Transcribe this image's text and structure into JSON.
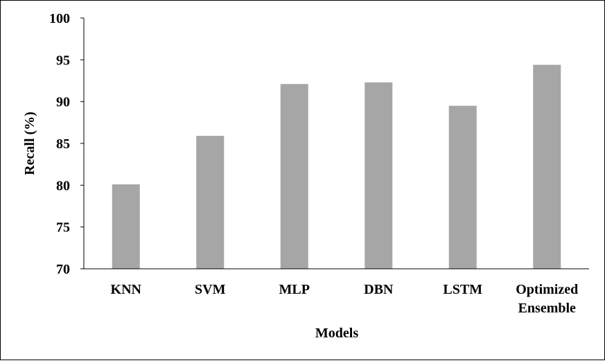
{
  "chart_data": {
    "type": "bar",
    "title": "",
    "xlabel": "Models",
    "ylabel": "Recall (%)",
    "categories": [
      [
        "KNN"
      ],
      [
        "SVM"
      ],
      [
        "MLP"
      ],
      [
        "DBN"
      ],
      [
        "LSTM"
      ],
      [
        "Optimized",
        "Ensemble"
      ]
    ],
    "values": [
      80.1,
      85.9,
      92.1,
      92.3,
      89.5,
      94.4
    ],
    "ylim": [
      70,
      100
    ],
    "yticks": [
      70,
      75,
      80,
      85,
      90,
      95,
      100
    ],
    "grid": false,
    "bar_color": "#a6a6a6"
  }
}
